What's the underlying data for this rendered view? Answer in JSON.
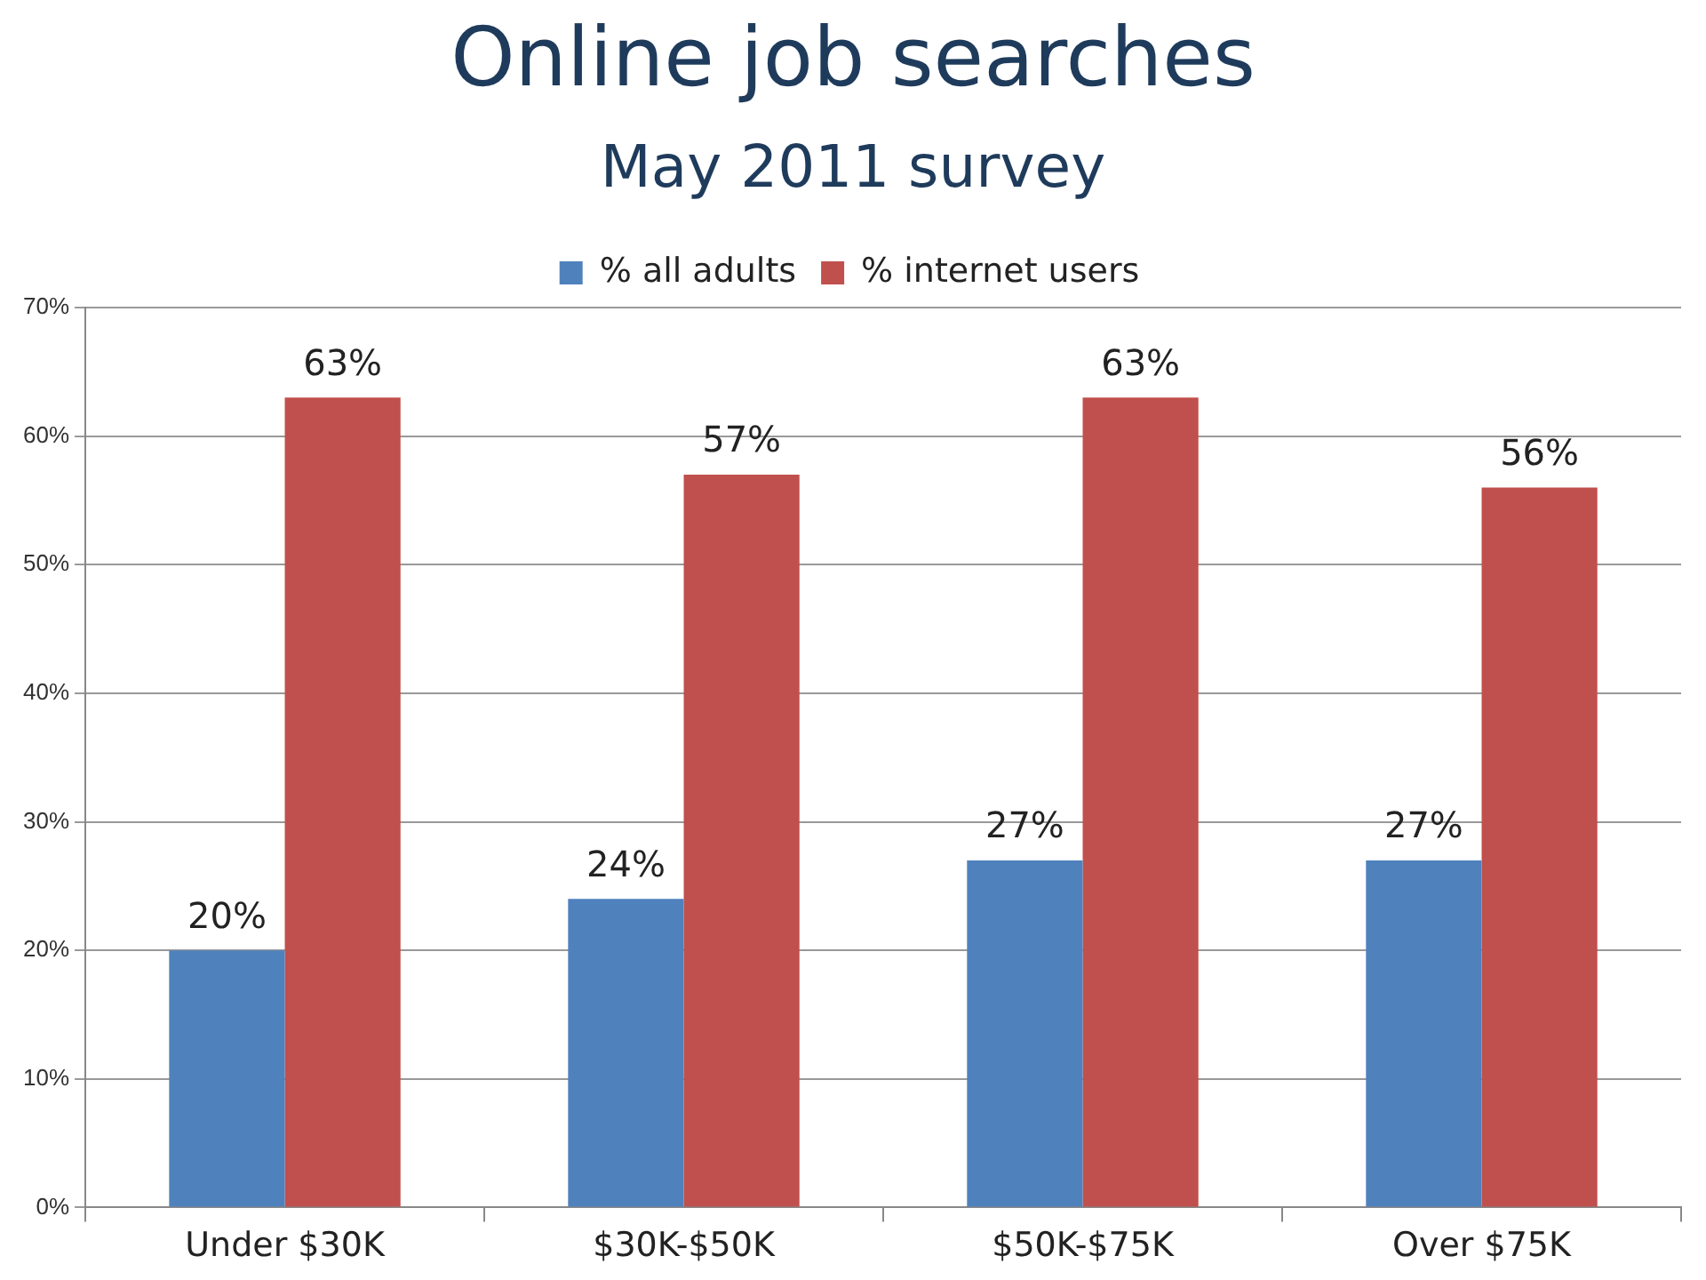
{
  "chart_data": {
    "type": "bar",
    "title": "Online job searches",
    "subtitle": "May 2011 survey",
    "categories": [
      "Under $30K",
      "$30K-$50K",
      "$50K-$75K",
      "Over $75K"
    ],
    "series": [
      {
        "name": "% all adults",
        "color": "#4f81bd",
        "values": [
          20,
          24,
          27,
          27
        ],
        "value_labels": [
          "20%",
          "24%",
          "27%",
          "27%"
        ]
      },
      {
        "name": "% internet users",
        "color": "#c0504d",
        "values": [
          63,
          57,
          63,
          56
        ],
        "value_labels": [
          "63%",
          "57%",
          "63%",
          "56%"
        ]
      }
    ],
    "ylim": [
      0,
      70
    ],
    "yticks": [
      {
        "value": 0,
        "label": "0%"
      },
      {
        "value": 10,
        "label": "10%"
      },
      {
        "value": 20,
        "label": "20%"
      },
      {
        "value": 30,
        "label": "30%"
      },
      {
        "value": 40,
        "label": "40%"
      },
      {
        "value": 50,
        "label": "50%"
      },
      {
        "value": 60,
        "label": "60%"
      },
      {
        "value": 70,
        "label": "70%"
      }
    ],
    "grid": "y",
    "legend": "top"
  }
}
